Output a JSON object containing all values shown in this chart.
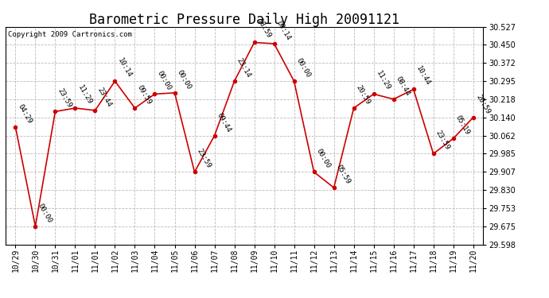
{
  "title": "Barometric Pressure Daily High 20091121",
  "copyright": "Copyright 2009 Cartronics.com",
  "background_color": "#ffffff",
  "plot_background": "#ffffff",
  "grid_color": "#bbbbbb",
  "line_color": "#cc0000",
  "marker_color": "#cc0000",
  "text_color": "#000000",
  "x_labels": [
    "10/29",
    "10/30",
    "10/31",
    "11/01",
    "11/01",
    "11/02",
    "11/03",
    "11/04",
    "11/05",
    "11/06",
    "11/07",
    "11/08",
    "11/09",
    "11/10",
    "11/11",
    "11/12",
    "11/13",
    "11/14",
    "11/15",
    "11/16",
    "11/17",
    "11/18",
    "11/19",
    "11/20"
  ],
  "y_values": [
    30.1,
    29.675,
    30.165,
    30.18,
    30.17,
    30.295,
    30.18,
    30.24,
    30.245,
    29.907,
    30.062,
    30.295,
    30.46,
    30.455,
    30.295,
    29.907,
    29.84,
    30.18,
    30.24,
    30.218,
    30.26,
    29.985,
    30.05,
    30.14
  ],
  "time_labels": [
    "04:29",
    "00:00",
    "23:59",
    "11:29",
    "23:44",
    "10:14",
    "09:59",
    "00:00",
    "00:00",
    "23:59",
    "09:44",
    "23:14",
    "18:59",
    "09:14",
    "00:00",
    "00:00",
    "05:59",
    "20:59",
    "11:29",
    "08:44",
    "10:44",
    "23:59",
    "05:19",
    "20:59"
  ],
  "y_ticks": [
    29.598,
    29.675,
    29.753,
    29.83,
    29.907,
    29.985,
    30.062,
    30.14,
    30.218,
    30.295,
    30.372,
    30.45,
    30.527
  ],
  "y_min": 29.598,
  "y_max": 30.527,
  "title_fontsize": 12,
  "tick_fontsize": 7,
  "label_fontsize": 6.5,
  "copyright_fontsize": 6.5
}
